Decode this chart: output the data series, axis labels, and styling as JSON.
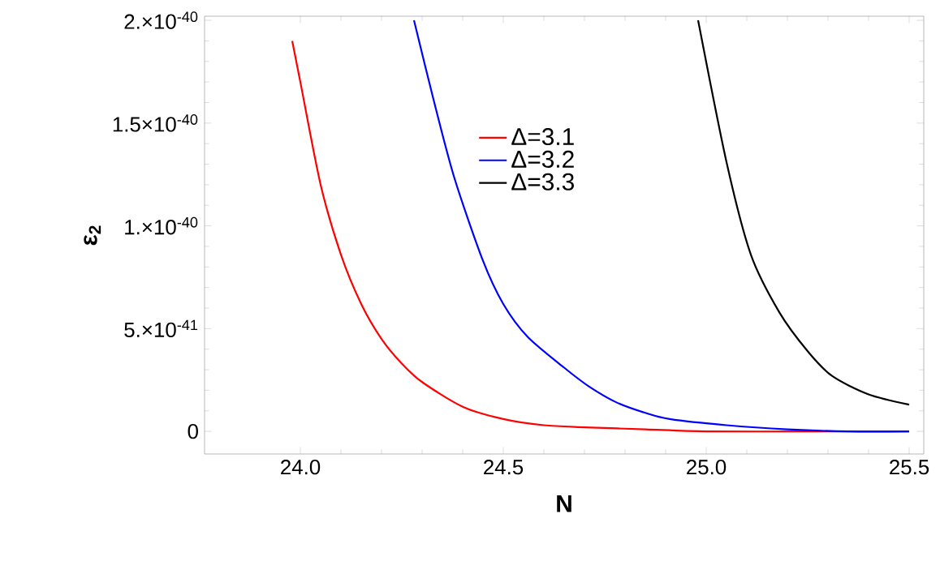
{
  "chart_data": {
    "type": "line",
    "xlabel": "N",
    "ylabel": "ε$_{2}$",
    "xlim": [
      23.764,
      25.536
    ],
    "ylim": [
      -1.1e-41,
      2.02e-40
    ],
    "xticks": [
      {
        "value": 24,
        "label": "24.0"
      },
      {
        "value": 24.5,
        "label": "24.5"
      },
      {
        "value": 25,
        "label": "25.0"
      },
      {
        "value": 25.5,
        "label": "25.5"
      }
    ],
    "yticks": [
      0,
      {
        "value": 5e-41,
        "label": "5.×10$^{-41}$"
      },
      {
        "value": 1e-40,
        "label": "1.×10$^{-40}$"
      },
      {
        "value": 1.5e-40,
        "label": "1.5×10$^{-40}$"
      },
      {
        "value": 2e-40,
        "label": "2.×10$^{-40}$"
      }
    ],
    "legend": "top",
    "grid": false,
    "marker": "none",
    "line_style": "solid",
    "series": [
      {
        "name": "Δ=3.1",
        "color": "#ff0000",
        "x": [
          23.98,
          24.0,
          24.05,
          24.1,
          24.15,
          24.2,
          24.25,
          24.3,
          24.4,
          24.5,
          24.6,
          24.7,
          24.85,
          25.0,
          25.25,
          25.5
        ],
        "values": [
          1.9e-40,
          1.7e-40,
          1.2e-40,
          8.6e-41,
          6.2e-41,
          4.5e-41,
          3.3e-41,
          2.4e-41,
          1.2e-41,
          6e-42,
          3e-42,
          2e-42,
          1e-42,
          0,
          0,
          0
        ]
      },
      {
        "name": "Δ=3.2",
        "color": "#0000ff",
        "x": [
          24.28,
          24.33,
          24.38,
          24.45,
          24.5,
          24.56,
          24.65,
          24.71,
          24.78,
          24.85,
          24.91,
          25.05,
          25.2,
          25.35,
          25.5
        ],
        "values": [
          2e-40,
          1.6e-40,
          1.23e-40,
          8.3e-41,
          6.2e-41,
          4.6e-41,
          3.1e-41,
          2.2e-41,
          1.4e-41,
          9e-42,
          6e-42,
          3e-42,
          1e-42,
          0,
          0
        ]
      },
      {
        "name": "Δ=3.3",
        "color": "#000000",
        "x": [
          24.98,
          25.05,
          25.11,
          25.18,
          25.25,
          25.31,
          25.4,
          25.5
        ],
        "values": [
          2e-40,
          1.31e-40,
          8.6e-41,
          5.8e-41,
          3.9e-41,
          2.7e-41,
          1.8e-41,
          1.3e-41
        ]
      }
    ]
  }
}
